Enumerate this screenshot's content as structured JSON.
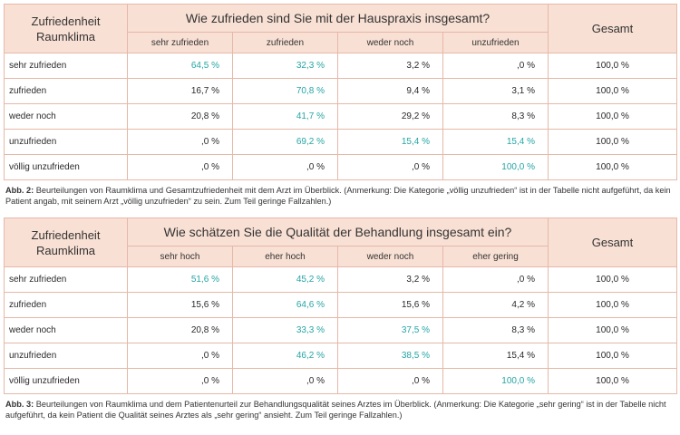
{
  "tables": [
    {
      "corner_line1": "Zufriedenheit",
      "corner_line2": "Raumklima",
      "question": "Wie zufrieden sind Sie mit der Hauspraxis insgesamt?",
      "total_label": "Gesamt",
      "columns": [
        "sehr zufrieden",
        "zufrieden",
        "weder noch",
        "unzufrieden"
      ],
      "rows": [
        {
          "label": "sehr zufrieden",
          "values": [
            "64,5 %",
            "32,3 %",
            "3,2 %",
            ",0 %"
          ],
          "highlight": [
            true,
            true,
            false,
            false
          ],
          "total": "100,0 %"
        },
        {
          "label": "zufrieden",
          "values": [
            "16,7 %",
            "70,8 %",
            "9,4 %",
            "3,1 %"
          ],
          "highlight": [
            false,
            true,
            false,
            false
          ],
          "total": "100,0 %"
        },
        {
          "label": "weder noch",
          "values": [
            "20,8 %",
            "41,7 %",
            "29,2 %",
            "8,3 %"
          ],
          "highlight": [
            false,
            true,
            false,
            false
          ],
          "total": "100,0 %"
        },
        {
          "label": "unzufrieden",
          "values": [
            ",0 %",
            "69,2 %",
            "15,4 %",
            "15,4 %"
          ],
          "highlight": [
            false,
            true,
            true,
            true
          ],
          "total": "100,0 %"
        },
        {
          "label": "völlig unzufrieden",
          "values": [
            ",0 %",
            ",0 %",
            ",0 %",
            "100,0 %"
          ],
          "highlight": [
            false,
            false,
            false,
            true
          ],
          "total": "100,0 %"
        }
      ],
      "caption_label": "Abb. 2:",
      "caption_text": "Beurteilungen von Raumklima und Gesamtzufriedenheit mit dem Arzt im Überblick. (Anmerkung: Die Kategorie „völlig unzufrieden“ ist in der Tabelle nicht aufgeführt, da kein Patient angab, mit seinem Arzt „völlig unzufrieden“ zu sein. Zum Teil geringe Fallzahlen.)"
    },
    {
      "corner_line1": "Zufriedenheit",
      "corner_line2": "Raumklima",
      "question": "Wie schätzen Sie die Qualität der Behandlung insgesamt ein?",
      "total_label": "Gesamt",
      "columns": [
        "sehr hoch",
        "eher hoch",
        "weder noch",
        "eher gering"
      ],
      "rows": [
        {
          "label": "sehr zufrieden",
          "values": [
            "51,6 %",
            "45,2 %",
            "3,2 %",
            ",0 %"
          ],
          "highlight": [
            true,
            true,
            false,
            false
          ],
          "total": "100,0 %"
        },
        {
          "label": "zufrieden",
          "values": [
            "15,6 %",
            "64,6 %",
            "15,6 %",
            "4,2 %"
          ],
          "highlight": [
            false,
            true,
            false,
            false
          ],
          "total": "100,0 %"
        },
        {
          "label": "weder noch",
          "values": [
            "20,8 %",
            "33,3 %",
            "37,5 %",
            "8,3 %"
          ],
          "highlight": [
            false,
            true,
            true,
            false
          ],
          "total": "100,0 %"
        },
        {
          "label": "unzufrieden",
          "values": [
            ",0 %",
            "46,2 %",
            "38,5 %",
            "15,4 %"
          ],
          "highlight": [
            false,
            true,
            true,
            false
          ],
          "total": "100,0 %"
        },
        {
          "label": "völlig unzufrieden",
          "values": [
            ",0 %",
            ",0 %",
            ",0 %",
            "100,0 %"
          ],
          "highlight": [
            false,
            false,
            false,
            true
          ],
          "total": "100,0 %"
        }
      ],
      "caption_label": "Abb. 3:",
      "caption_text": "Beurteilungen von Raumklima und dem Patientenurteil zur Behandlungsqualität seines Arztes im Überblick. (Anmerkung: Die Kategorie „sehr gering“ ist in der Tabelle nicht aufgeführt, da kein Patient die Qualität seines Arztes als „sehr gering“ ansieht. Zum Teil geringe Fallzahlen.)"
    }
  ],
  "colors": {
    "header_bg": "#f9e0d4",
    "border": "#e6b8a8",
    "highlight": "#26a5a5"
  }
}
